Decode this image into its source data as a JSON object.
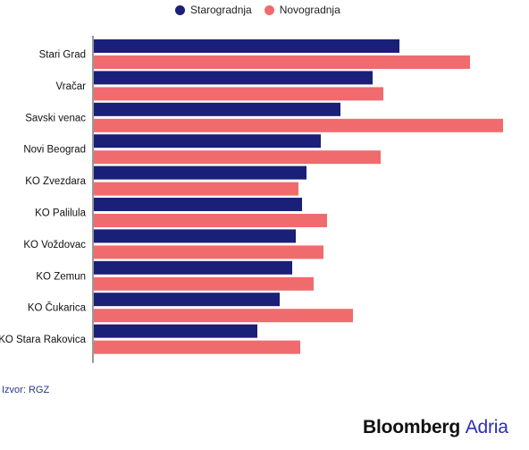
{
  "chart_data": {
    "type": "bar",
    "orientation": "horizontal",
    "categories": [
      "Stari Grad",
      "Vračar",
      "Savski venac",
      "Novi Beograd",
      "KO Zvezdara",
      "KO Palilula",
      "KO Voždovac",
      "KO Zemun",
      "KO Čukarica",
      "KO Stara Rakovica"
    ],
    "series": [
      {
        "name": "Starogradnja",
        "color": "#1a1f78",
        "values": [
          342,
          312,
          276,
          254,
          238,
          233,
          226,
          222,
          208,
          183
        ]
      },
      {
        "name": "Novogradnja",
        "color": "#f06b6e",
        "values": [
          421,
          324,
          458,
          321,
          229,
          261,
          257,
          246,
          290,
          231
        ]
      }
    ],
    "legend_position": "top-center",
    "grid": false
  },
  "legend": {
    "items": [
      {
        "label": "Starogradnja",
        "color": "#1a1f78"
      },
      {
        "label": "Novogradnja",
        "color": "#f06b6e"
      }
    ]
  },
  "source": "Izvor: RGZ",
  "brand": {
    "name": "Bloomberg",
    "accent": "Adria"
  }
}
